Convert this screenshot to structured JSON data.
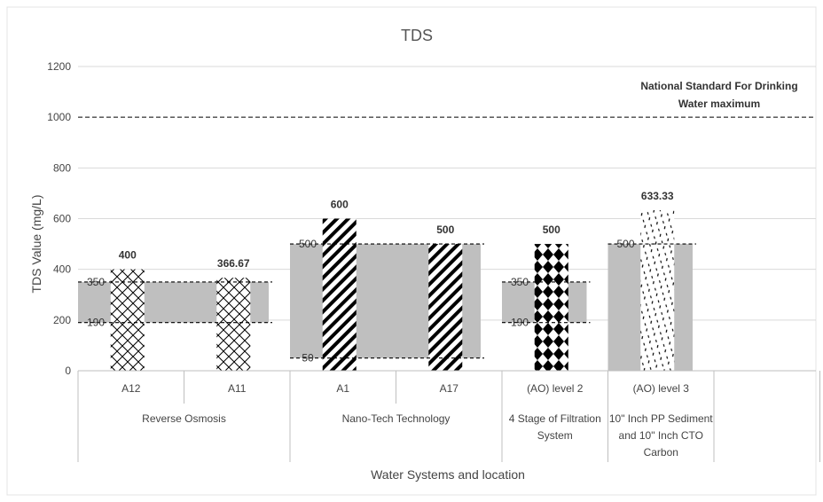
{
  "chart_data": {
    "type": "bar",
    "title": "TDS",
    "ylabel": "TDS Value (mg/L)",
    "xlabel": "Water Systems and location",
    "ylim": [
      0,
      1200
    ],
    "yticks": [
      "0",
      "200",
      "400",
      "600",
      "800",
      "1000",
      "1200"
    ],
    "grid": true,
    "categories": [
      "A12",
      "A11",
      "A1",
      "A17",
      "(AO) level 2",
      "(AO) level 3"
    ],
    "values": [
      400,
      366.67,
      600,
      500,
      500,
      633.33
    ],
    "value_labels": [
      "400",
      "366.67",
      "600",
      "500",
      "500",
      "633.33"
    ],
    "patterns": [
      "crosshatch",
      "crosshatch",
      "diagonal-stripes",
      "diagonal-stripes",
      "diamonds",
      "dots"
    ],
    "groups": [
      {
        "name": "Reverse Osmosis",
        "lines": [
          "Reverse Osmosis"
        ],
        "start": 0,
        "count": 2
      },
      {
        "name": "Nano-Tech Technology",
        "lines": [
          "Nano-Tech Technology"
        ],
        "start": 2,
        "count": 2
      },
      {
        "name": "4 Stage of Filtration System",
        "lines": [
          "4 Stage of Filtration",
          "System"
        ],
        "start": 4,
        "count": 1
      },
      {
        "name": "10\" Inch PP Sediment and 10\" Inch CTO Carbon",
        "lines": [
          "10\" Inch PP Sediment",
          "and 10\" Inch CTO",
          "Carbon"
        ],
        "start": 5,
        "count": 1
      }
    ],
    "ranges": [
      {
        "group": 0,
        "low": 190,
        "high": 350,
        "labels": [
          "350",
          "190"
        ]
      },
      {
        "group": 1,
        "low": 50,
        "high": 500,
        "labels": [
          "500",
          "50"
        ]
      },
      {
        "group": 2,
        "low": 190,
        "high": 350,
        "labels": [
          "350",
          "190"
        ]
      },
      {
        "group": 3,
        "low": 0,
        "high": 500,
        "labels": [
          "500"
        ]
      }
    ],
    "reference_line": {
      "value": 1000,
      "label_lines": [
        "National Standard For Drinking",
        "Water maximum"
      ]
    },
    "colors": {
      "range_fill": "#bfbfbf",
      "bar_pattern": "#000000",
      "grid": "#d9d9d9",
      "axis": "#bfbfbf"
    }
  }
}
